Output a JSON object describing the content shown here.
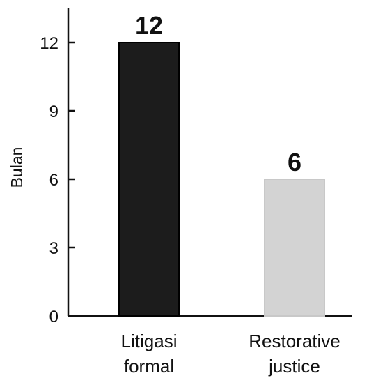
{
  "chart_data": {
    "type": "bar",
    "categories": [
      [
        "Litigasi",
        "formal"
      ],
      [
        "Restorative",
        "justice"
      ]
    ],
    "values": [
      12,
      6
    ],
    "data_labels": [
      "12",
      "6"
    ],
    "ylabel": "Bulan",
    "xlabel": "",
    "title": "",
    "ylim": [
      0,
      13.5
    ],
    "yticks": [
      0,
      3,
      6,
      9,
      12
    ],
    "grid": false,
    "legend": "none",
    "colors": [
      "#1c1c1c",
      "#d3d3d3"
    ],
    "stroke_colors": [
      "#000000",
      "#c8c8c8"
    ]
  }
}
